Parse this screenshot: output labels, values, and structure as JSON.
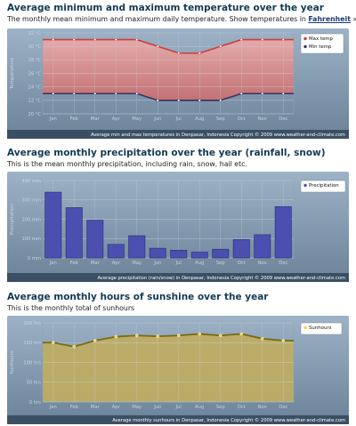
{
  "sections": [
    {
      "title": "Average minimum and maximum temperature over the year",
      "subtitle": "The monthly mean minimum and maximum daily temperature. Show temperatures in",
      "subtitle_link": "Fahrenheit",
      "subtitle_suffix": "»"
    },
    {
      "title": "Average monthly precipitation over the year (rainfall, snow)",
      "subtitle": "This is the mean monthly precipitation, including rain, snow, hail etc."
    },
    {
      "title": "Average monthly hours of sunshine over the year",
      "subtitle": "This is the monthly total of sunhours"
    }
  ],
  "chart_data": [
    {
      "type": "line",
      "categories": [
        "Jan",
        "Feb",
        "Mar",
        "Apr",
        "May",
        "Jun",
        "Jul",
        "Aug",
        "Sep",
        "Oct",
        "Nov",
        "Dec"
      ],
      "series": [
        {
          "name": "Max temp",
          "values": [
            31,
            31,
            31,
            31,
            31,
            30,
            29,
            29,
            30,
            31,
            31,
            31
          ]
        },
        {
          "name": "Min temp",
          "values": [
            23,
            23,
            23,
            23,
            23,
            22,
            22,
            22,
            22,
            23,
            23,
            23
          ]
        }
      ],
      "yticks": [
        "20 °C",
        "22 °C",
        "24 °C",
        "26 °C",
        "28 °C",
        "30 °C",
        "32 °C"
      ],
      "ylim": [
        20,
        32
      ],
      "ylabel": "Temperature",
      "footer": "Average min and max temperatures in Denpasar, Indonesia    Copyright © 2009 www.weather-and-climate.com",
      "colors": {
        "max": "#cc3b3b",
        "min": "#3b2f63",
        "band_top": "#e8aaa8",
        "band_bottom": "#c76f70"
      }
    },
    {
      "type": "bar",
      "categories": [
        "Jan",
        "Feb",
        "Mar",
        "Apr",
        "May",
        "Jun",
        "Jul",
        "Aug",
        "Sep",
        "Oct",
        "Nov",
        "Dec"
      ],
      "series": [
        {
          "name": "Precipitation",
          "values": [
            340,
            260,
            195,
            70,
            115,
            50,
            40,
            30,
            45,
            95,
            120,
            265
          ]
        }
      ],
      "yticks": [
        "0 mm",
        "100 mm",
        "200 mm",
        "300 mm",
        "400 mm"
      ],
      "ylim": [
        0,
        400
      ],
      "ylabel": "Precipitation",
      "footer": "Average precipitation (rain/snow) in Denpasar, Indonesia    Copyright © 2009 www.weather-and-climate.com",
      "colors": {
        "bar": "#4a4fb0",
        "bar_border": "#2a2c78"
      }
    },
    {
      "type": "area",
      "categories": [
        "Jan",
        "Feb",
        "Mar",
        "Apr",
        "May",
        "Jun",
        "Jul",
        "Aug",
        "Sep",
        "Oct",
        "Nov",
        "Dec"
      ],
      "series": [
        {
          "name": "Sunhours",
          "values": [
            150,
            140,
            155,
            165,
            168,
            166,
            168,
            172,
            168,
            172,
            160,
            155
          ]
        }
      ],
      "yticks": [
        "0 hrs",
        "50 hrs",
        "100 hrs",
        "150 hrs",
        "200 hrs"
      ],
      "ylim": [
        0,
        200
      ],
      "ylabel": "Sunhours",
      "footer": "Average monthly sunhours in Denpasar, Indonesia    Copyright © 2009 www.weather-and-climate.com",
      "colors": {
        "line": "#7a6a14",
        "point": "#f2d33a",
        "fill": "#bfae62"
      }
    }
  ]
}
